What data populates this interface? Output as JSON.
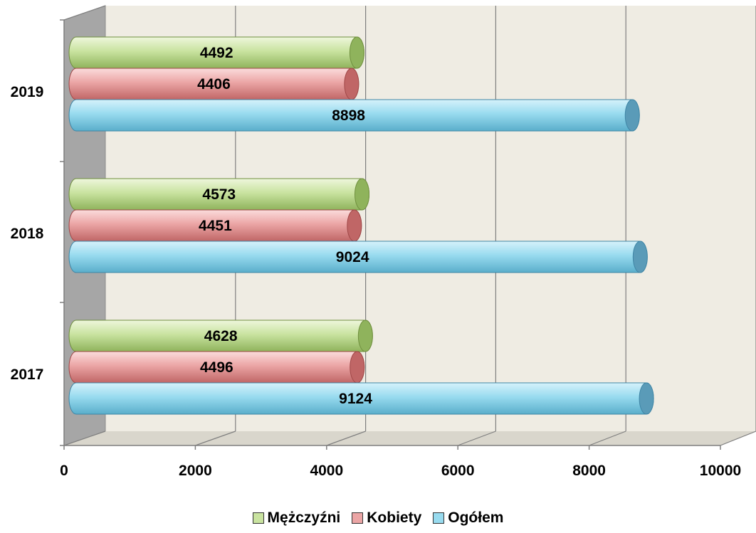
{
  "chart_data": {
    "type": "bar",
    "orientation": "horizontal",
    "style": "3d-cylinder",
    "categories": [
      "2017",
      "2018",
      "2019"
    ],
    "series": [
      {
        "name": "Mężczyźni",
        "values": [
          4628,
          4573,
          4492
        ],
        "color": "#b8d98a"
      },
      {
        "name": "Kobiety",
        "values": [
          4496,
          4451,
          4406
        ],
        "color": "#e8a0a0"
      },
      {
        "name": "Ogółem",
        "values": [
          9124,
          9024,
          8898
        ],
        "color": "#8ed3ea"
      }
    ],
    "xlim": [
      0,
      10000
    ],
    "x_ticks": [
      "0",
      "2000",
      "4000",
      "6000",
      "8000",
      "10000"
    ],
    "grid": true,
    "legend_position": "bottom",
    "title": "",
    "xlabel": "",
    "ylabel": "",
    "data_labels": true
  }
}
